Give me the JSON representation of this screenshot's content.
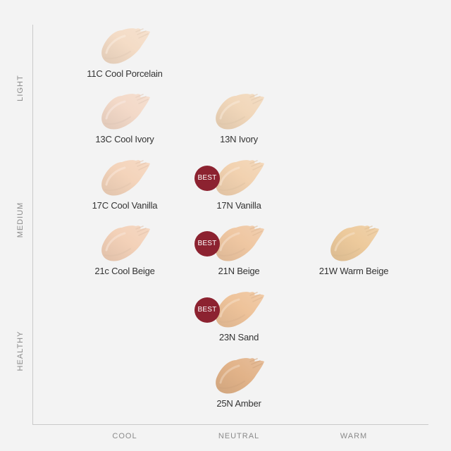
{
  "y_axis": {
    "light": "LIGHT",
    "medium": "MEDIUM",
    "healthy": "HEALTHY"
  },
  "x_axis": {
    "cool": "COOL",
    "neutral": "NEUTRAL",
    "warm": "WARM"
  },
  "badge_text": "BEST",
  "shades": [
    {
      "name": "11C Cool Porcelain",
      "color": "#f4dcc6",
      "best": false
    },
    {
      "name": "13C Cool Ivory",
      "color": "#f3d9c8",
      "best": false
    },
    {
      "name": "13N Ivory",
      "color": "#f1d7ba",
      "best": false
    },
    {
      "name": "17C Cool Vanilla",
      "color": "#f4d4bb",
      "best": false
    },
    {
      "name": "17N Vanilla",
      "color": "#f2d2b0",
      "best": true
    },
    {
      "name": "21c Cool Beige",
      "color": "#f3d1b8",
      "best": false
    },
    {
      "name": "21N Beige",
      "color": "#efc7a2",
      "best": true
    },
    {
      "name": "21W Warm Beige",
      "color": "#edca9c",
      "best": false
    },
    {
      "name": "23N Sand",
      "color": "#eec39a",
      "best": true
    },
    {
      "name": "25N Amber",
      "color": "#e2b389",
      "best": false
    }
  ]
}
